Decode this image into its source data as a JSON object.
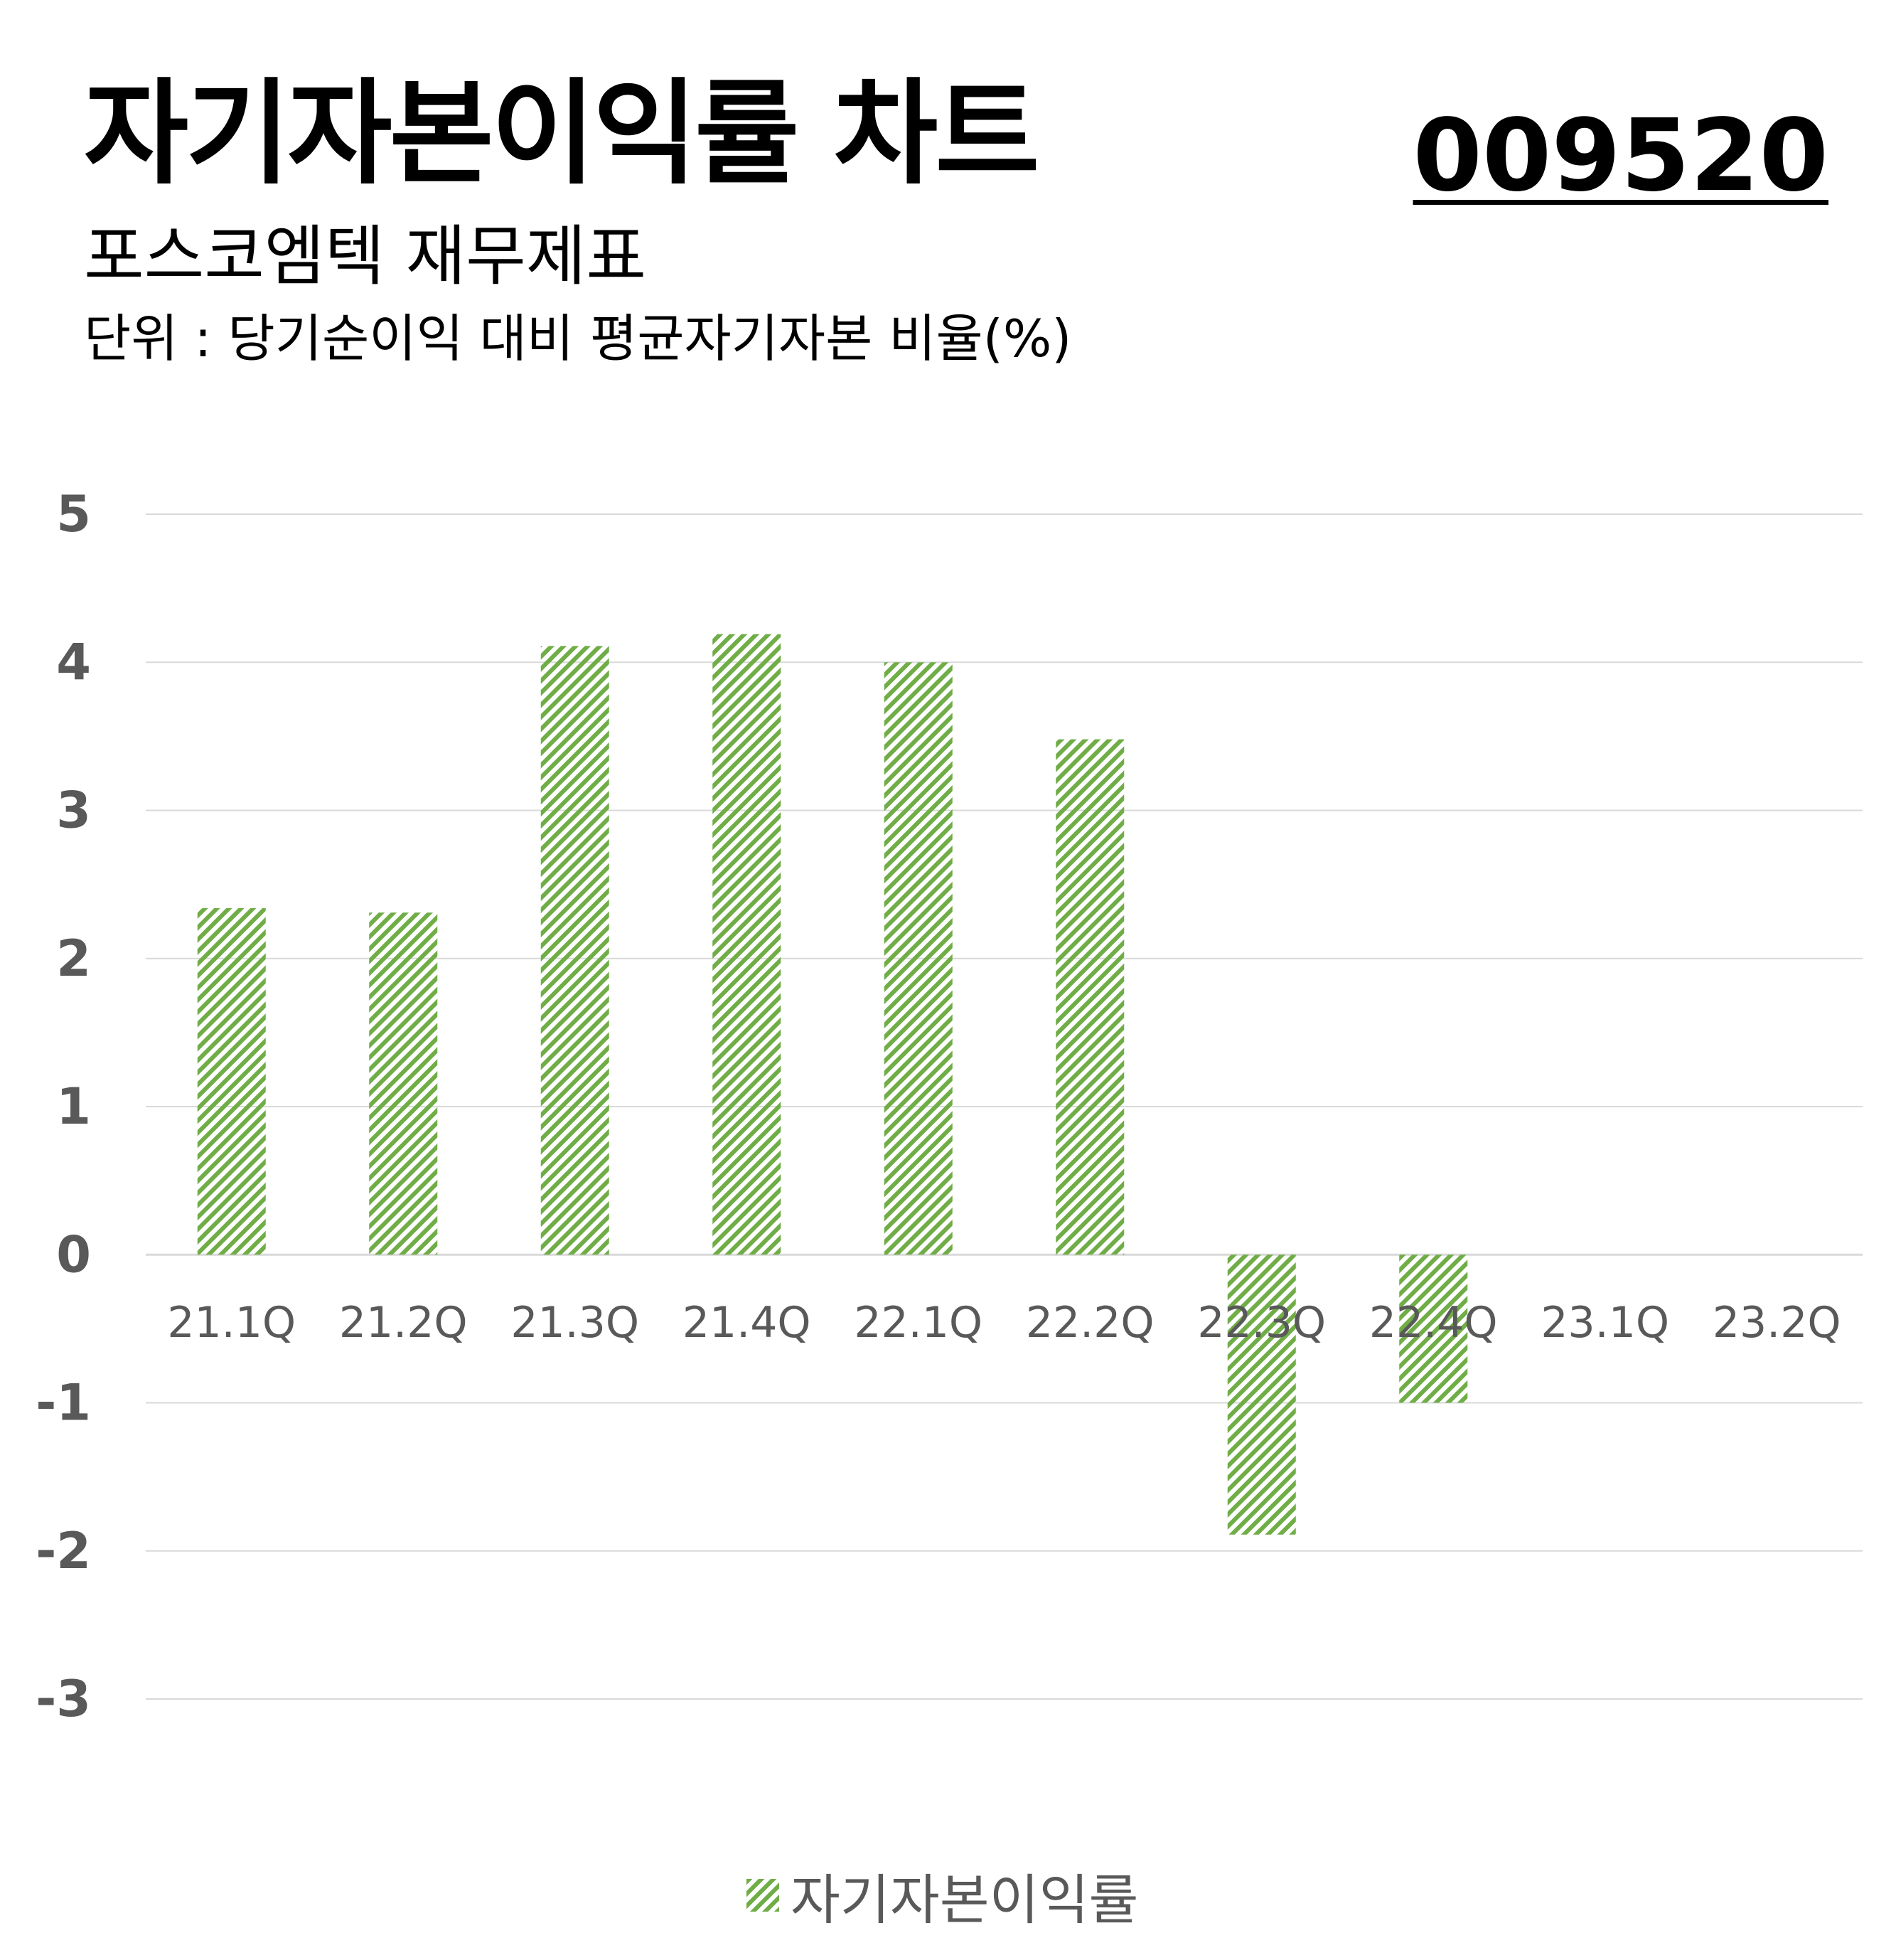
{
  "header": {
    "title": "자기자본이익률 차트",
    "code": "009520",
    "subtitle": "포스코엠텍 재무제표",
    "unit": "단위 : 당기순이익 대비 평균자기자본 비율(%)"
  },
  "colors": {
    "bar": "#70ad47",
    "grid": "#d9d9d9",
    "y_tick": "#595959",
    "x_tick": "#595959"
  },
  "chart_data": {
    "type": "bar",
    "categories": [
      "21.1Q",
      "21.2Q",
      "21.3Q",
      "21.4Q",
      "22.1Q",
      "22.2Q",
      "22.3Q",
      "22.4Q",
      "23.1Q",
      "23.2Q"
    ],
    "series": [
      {
        "name": "자기자본이익률",
        "values": [
          2.34,
          2.31,
          4.11,
          4.19,
          4.0,
          3.48,
          -1.89,
          -1.0,
          null,
          null
        ]
      }
    ],
    "ylim": [
      -3,
      5
    ],
    "y_ticks": [
      5,
      4,
      3,
      2,
      1,
      0,
      -1,
      -2,
      -3
    ],
    "grid": true,
    "legend": "bottom",
    "fill": "diagonal-hatch"
  }
}
